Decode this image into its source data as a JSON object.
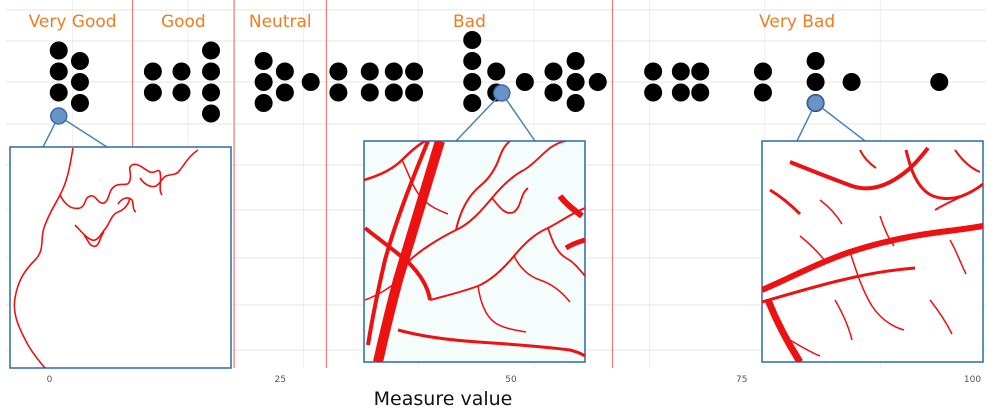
{
  "chart_data": {
    "type": "scatter",
    "title": "",
    "xlabel": "Measure value",
    "ylabel": "",
    "xlim": [
      -4,
      101
    ],
    "xticks": [
      0,
      25,
      50,
      75,
      100
    ],
    "grid": true,
    "legend": "none",
    "categories": [
      {
        "label": "Very Good",
        "from": -4,
        "to": 9
      },
      {
        "label": "Good",
        "from": 9,
        "to": 20
      },
      {
        "label": "Neutral",
        "from": 20,
        "to": 30
      },
      {
        "label": "Bad",
        "from": 30,
        "to": 61
      },
      {
        "label": "Very Bad",
        "from": 61,
        "to": 101
      }
    ],
    "dot_columns": [
      {
        "x": 1,
        "count": 3,
        "offset": -0.5
      },
      {
        "x": 3.3,
        "count": 3,
        "offset": 0
      },
      {
        "x": 11.2,
        "count": 2,
        "offset": 0
      },
      {
        "x": 14.3,
        "count": 2,
        "offset": 0
      },
      {
        "x": 17.5,
        "count": 4,
        "offset": 0
      },
      {
        "x": 23.2,
        "count": 3,
        "offset": 0
      },
      {
        "x": 25.5,
        "count": 2,
        "offset": 0
      },
      {
        "x": 28.3,
        "count": 1,
        "offset": 0
      },
      {
        "x": 31.3,
        "count": 2,
        "offset": 0
      },
      {
        "x": 34.7,
        "count": 2,
        "offset": 0
      },
      {
        "x": 37.3,
        "count": 2,
        "offset": 0
      },
      {
        "x": 39.5,
        "count": 2,
        "offset": 0
      },
      {
        "x": 45.8,
        "count": 4,
        "offset": -0.5
      },
      {
        "x": 48.4,
        "count": 2,
        "offset": 0
      },
      {
        "x": 51.5,
        "count": 1,
        "offset": 0
      },
      {
        "x": 54.6,
        "count": 2,
        "offset": 0
      },
      {
        "x": 57,
        "count": 3,
        "offset": 0
      },
      {
        "x": 59.4,
        "count": 1,
        "offset": 0
      },
      {
        "x": 65.4,
        "count": 2,
        "offset": 0
      },
      {
        "x": 68.4,
        "count": 2,
        "offset": 0
      },
      {
        "x": 70.5,
        "count": 2,
        "offset": 0
      },
      {
        "x": 77.3,
        "count": 2,
        "offset": 0
      },
      {
        "x": 83,
        "count": 3,
        "offset": 0
      },
      {
        "x": 86.9,
        "count": 1,
        "offset": 0
      },
      {
        "x": 96.4,
        "count": 1,
        "offset": 0
      }
    ],
    "highlighted_points": [
      1,
      49,
      83
    ],
    "colors": {
      "category_label": "#ef7d22",
      "category_divider": "#f08080",
      "dots": "#000000",
      "highlight_fill": "#6a93c8",
      "highlight_stroke": "#3a6aa8",
      "connector": "#4a86b4",
      "inset_border": "#2a6aa8",
      "inset_lines": "#ee1111",
      "grid": "#e6e6e6"
    }
  }
}
